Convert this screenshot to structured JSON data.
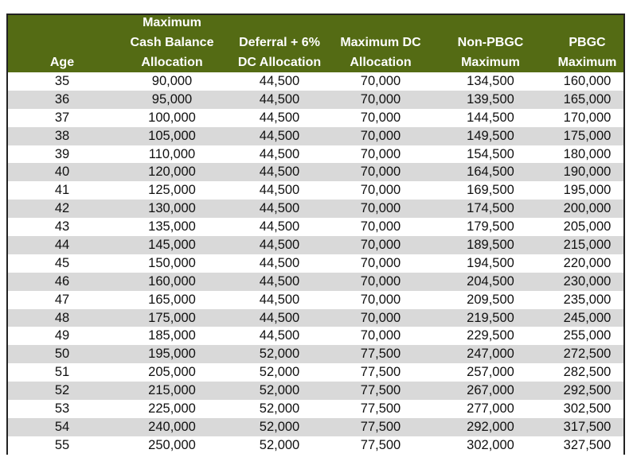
{
  "headers": [
    [
      "Age"
    ],
    [
      "Maximum",
      "Cash Balance",
      "Allocation"
    ],
    [
      "Deferral + 6%",
      "DC Allocation"
    ],
    [
      "Maximum DC",
      "Allocation"
    ],
    [
      "Non-PBGC",
      "Maximum"
    ],
    [
      "PBGC",
      "Maximum"
    ]
  ],
  "rows": [
    [
      "35",
      "90,000",
      "44,500",
      "70,000",
      "134,500",
      "160,000"
    ],
    [
      "36",
      "95,000",
      "44,500",
      "70,000",
      "139,500",
      "165,000"
    ],
    [
      "37",
      "100,000",
      "44,500",
      "70,000",
      "144,500",
      "170,000"
    ],
    [
      "38",
      "105,000",
      "44,500",
      "70,000",
      "149,500",
      "175,000"
    ],
    [
      "39",
      "110,000",
      "44,500",
      "70,000",
      "154,500",
      "180,000"
    ],
    [
      "40",
      "120,000",
      "44,500",
      "70,000",
      "164,500",
      "190,000"
    ],
    [
      "41",
      "125,000",
      "44,500",
      "70,000",
      "169,500",
      "195,000"
    ],
    [
      "42",
      "130,000",
      "44,500",
      "70,000",
      "174,500",
      "200,000"
    ],
    [
      "43",
      "135,000",
      "44,500",
      "70,000",
      "179,500",
      "205,000"
    ],
    [
      "44",
      "145,000",
      "44,500",
      "70,000",
      "189,500",
      "215,000"
    ],
    [
      "45",
      "150,000",
      "44,500",
      "70,000",
      "194,500",
      "220,000"
    ],
    [
      "46",
      "160,000",
      "44,500",
      "70,000",
      "204,500",
      "230,000"
    ],
    [
      "47",
      "165,000",
      "44,500",
      "70,000",
      "209,500",
      "235,000"
    ],
    [
      "48",
      "175,000",
      "44,500",
      "70,000",
      "219,500",
      "245,000"
    ],
    [
      "49",
      "185,000",
      "44,500",
      "70,000",
      "229,500",
      "255,000"
    ],
    [
      "50",
      "195,000",
      "52,000",
      "77,500",
      "247,000",
      "272,500"
    ],
    [
      "51",
      "205,000",
      "52,000",
      "77,500",
      "257,000",
      "282,500"
    ],
    [
      "52",
      "215,000",
      "52,000",
      "77,500",
      "267,000",
      "292,500"
    ],
    [
      "53",
      "225,000",
      "52,000",
      "77,500",
      "277,000",
      "302,500"
    ],
    [
      "54",
      "240,000",
      "52,000",
      "77,500",
      "292,000",
      "317,500"
    ],
    [
      "55",
      "250,000",
      "52,000",
      "77,500",
      "302,000",
      "327,500"
    ]
  ],
  "colors": {
    "header": "#546b14",
    "alt_row": "#d9d9d9"
  }
}
